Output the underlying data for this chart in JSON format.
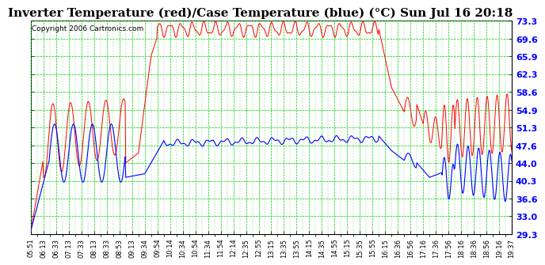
{
  "title": "Inverter Temperature (red)/Case Temperature (blue) (°C) Sun Jul 16 20:18",
  "copyright": "Copyright 2006 Cartronics.com",
  "plot_bg_color": "#ffffff",
  "fig_bg_color": "#ffffff",
  "grid_color": "#00cc00",
  "red_color": "#ff0000",
  "blue_color": "#0000ff",
  "yticks": [
    29.3,
    33.0,
    36.6,
    40.3,
    44.0,
    47.6,
    51.3,
    54.9,
    58.6,
    62.3,
    65.9,
    69.6,
    73.3
  ],
  "xtick_labels": [
    "05:51",
    "06:13",
    "06:33",
    "07:13",
    "07:33",
    "08:13",
    "08:33",
    "08:53",
    "09:13",
    "09:34",
    "09:54",
    "10:14",
    "10:34",
    "10:54",
    "11:34",
    "11:54",
    "12:14",
    "12:35",
    "12:55",
    "13:15",
    "13:35",
    "13:55",
    "14:15",
    "14:35",
    "14:55",
    "15:15",
    "15:35",
    "15:55",
    "16:15",
    "16:36",
    "16:56",
    "17:16",
    "17:36",
    "17:56",
    "18:16",
    "18:36",
    "18:56",
    "19:16",
    "19:37"
  ],
  "ymin": 29.3,
  "ymax": 73.3,
  "title_fontsize": 11,
  "copyright_fontsize": 6.5,
  "ytick_fontsize": 8,
  "xtick_fontsize": 6
}
